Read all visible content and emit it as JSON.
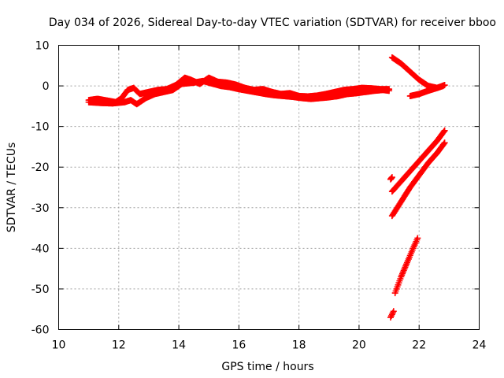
{
  "chart_data": {
    "type": "scatter",
    "title": "Day 034 of 2026, Sidereal Day-to-day VTEC variation (SDTVAR) for receiver bboo",
    "xlabel": "GPS time / hours",
    "ylabel": "SDTVAR / TECUs",
    "xlim": [
      10,
      24
    ],
    "ylim": [
      -60,
      10
    ],
    "xticks": [
      10,
      12,
      14,
      16,
      18,
      20,
      22,
      24
    ],
    "yticks": [
      -60,
      -50,
      -40,
      -30,
      -20,
      -10,
      0,
      10
    ],
    "grid": true,
    "marker": "plus",
    "color": "#ff0000",
    "series": [
      {
        "values": [
          [
            11.0,
            -3.5
          ],
          [
            11.3,
            -3.2
          ],
          [
            11.6,
            -3.6
          ],
          [
            11.9,
            -4.0
          ],
          [
            12.1,
            -3.0
          ],
          [
            12.3,
            -1.0
          ],
          [
            12.5,
            -0.5
          ],
          [
            12.7,
            -2.0
          ],
          [
            13.0,
            -1.5
          ],
          [
            13.3,
            -1.0
          ],
          [
            13.6,
            -0.8
          ],
          [
            13.9,
            0.2
          ],
          [
            14.2,
            2.0
          ],
          [
            14.4,
            1.5
          ],
          [
            14.7,
            0.5
          ],
          [
            15.0,
            2.0
          ],
          [
            15.3,
            1.0
          ],
          [
            15.6,
            0.8
          ],
          [
            15.9,
            0.3
          ],
          [
            16.2,
            -0.5
          ],
          [
            16.5,
            -1.0
          ],
          [
            16.8,
            -0.8
          ],
          [
            17.1,
            -1.5
          ],
          [
            17.4,
            -2.0
          ],
          [
            17.7,
            -1.8
          ],
          [
            18.0,
            -2.5
          ],
          [
            18.3,
            -2.6
          ],
          [
            18.6,
            -2.4
          ],
          [
            18.9,
            -2.0
          ],
          [
            19.2,
            -1.5
          ],
          [
            19.5,
            -1.0
          ],
          [
            19.8,
            -0.8
          ],
          [
            20.1,
            -0.5
          ],
          [
            20.4,
            -0.6
          ],
          [
            20.7,
            -0.8
          ],
          [
            21.0,
            -0.8
          ]
        ]
      },
      {
        "values": [
          [
            11.0,
            -4.0
          ],
          [
            11.4,
            -4.2
          ],
          [
            11.8,
            -4.3
          ],
          [
            12.2,
            -4.0
          ],
          [
            12.4,
            -3.5
          ],
          [
            12.6,
            -4.5
          ],
          [
            12.9,
            -3.0
          ],
          [
            13.2,
            -2.0
          ],
          [
            13.5,
            -1.5
          ],
          [
            13.8,
            -1.0
          ],
          [
            14.1,
            0.5
          ],
          [
            14.5,
            0.8
          ],
          [
            14.8,
            1.2
          ],
          [
            15.1,
            0.6
          ],
          [
            15.4,
            0.0
          ],
          [
            15.7,
            -0.3
          ],
          [
            16.0,
            -0.8
          ],
          [
            16.3,
            -1.2
          ],
          [
            16.6,
            -1.6
          ],
          [
            16.9,
            -2.0
          ],
          [
            17.2,
            -2.3
          ],
          [
            17.5,
            -2.5
          ],
          [
            17.8,
            -2.7
          ],
          [
            18.1,
            -3.0
          ],
          [
            18.4,
            -3.2
          ],
          [
            18.7,
            -3.0
          ],
          [
            19.0,
            -2.8
          ],
          [
            19.3,
            -2.5
          ],
          [
            19.6,
            -2.0
          ],
          [
            19.9,
            -1.8
          ],
          [
            20.2,
            -1.5
          ],
          [
            20.5,
            -1.2
          ],
          [
            20.8,
            -1.0
          ],
          [
            21.0,
            -1.2
          ]
        ]
      },
      {
        "values": [
          [
            21.1,
            7.0
          ],
          [
            21.4,
            5.5
          ],
          [
            21.7,
            3.5
          ],
          [
            22.0,
            1.5
          ],
          [
            22.3,
            0.0
          ],
          [
            22.6,
            -0.5
          ],
          [
            22.8,
            0.0
          ]
        ]
      },
      {
        "values": [
          [
            21.7,
            -2.5
          ],
          [
            22.0,
            -2.0
          ],
          [
            22.3,
            -1.2
          ],
          [
            22.6,
            -0.5
          ],
          [
            22.85,
            0.2
          ]
        ]
      },
      {
        "values": [
          [
            21.1,
            -26.0
          ],
          [
            21.4,
            -23.5
          ],
          [
            21.7,
            -21.0
          ],
          [
            22.0,
            -18.5
          ],
          [
            22.3,
            -16.0
          ],
          [
            22.6,
            -13.5
          ],
          [
            22.85,
            -11.0
          ]
        ]
      },
      {
        "values": [
          [
            21.1,
            -32.0
          ],
          [
            21.4,
            -28.5
          ],
          [
            21.7,
            -25.0
          ],
          [
            22.0,
            -22.0
          ],
          [
            22.3,
            -19.0
          ],
          [
            22.6,
            -16.5
          ],
          [
            22.85,
            -14.0
          ]
        ]
      },
      {
        "values": [
          [
            21.05,
            -23.0
          ],
          [
            21.1,
            -22.5
          ]
        ]
      },
      {
        "values": [
          [
            21.2,
            -51.0
          ],
          [
            21.4,
            -47.0
          ],
          [
            21.6,
            -43.5
          ],
          [
            21.8,
            -40.0
          ],
          [
            21.95,
            -37.5
          ]
        ]
      },
      {
        "values": [
          [
            21.05,
            -57.0
          ],
          [
            21.15,
            -55.5
          ]
        ]
      }
    ]
  }
}
